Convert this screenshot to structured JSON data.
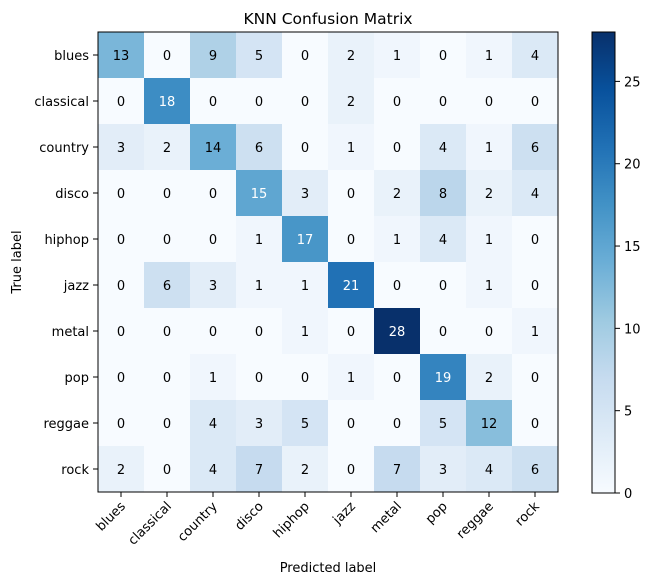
{
  "chart_data": {
    "type": "heatmap",
    "title": "KNN Confusion Matrix",
    "xlabel": "Predicted label",
    "ylabel": "True label",
    "x_categories": [
      "blues",
      "classical",
      "country",
      "disco",
      "hiphop",
      "jazz",
      "metal",
      "pop",
      "reggae",
      "rock"
    ],
    "y_categories": [
      "blues",
      "classical",
      "country",
      "disco",
      "hiphop",
      "jazz",
      "metal",
      "pop",
      "reggae",
      "rock"
    ],
    "values": [
      [
        13,
        0,
        9,
        5,
        0,
        2,
        1,
        0,
        1,
        4
      ],
      [
        0,
        18,
        0,
        0,
        0,
        2,
        0,
        0,
        0,
        0
      ],
      [
        3,
        2,
        14,
        6,
        0,
        1,
        0,
        4,
        1,
        6
      ],
      [
        0,
        0,
        0,
        15,
        3,
        0,
        2,
        8,
        2,
        4
      ],
      [
        0,
        0,
        0,
        1,
        17,
        0,
        1,
        4,
        1,
        0
      ],
      [
        0,
        6,
        3,
        1,
        1,
        21,
        0,
        0,
        1,
        0
      ],
      [
        0,
        0,
        0,
        0,
        1,
        0,
        28,
        0,
        0,
        1
      ],
      [
        0,
        0,
        1,
        0,
        0,
        1,
        0,
        19,
        2,
        0
      ],
      [
        0,
        0,
        4,
        3,
        5,
        0,
        0,
        5,
        12,
        0
      ],
      [
        2,
        0,
        4,
        7,
        2,
        0,
        7,
        3,
        4,
        6
      ]
    ],
    "colormap": "Blues",
    "colorbar": {
      "vmin": 0,
      "vmax": 28,
      "ticks": [
        0,
        5,
        10,
        15,
        20,
        25
      ]
    },
    "grid": false,
    "x_tick_rotation": 45
  }
}
